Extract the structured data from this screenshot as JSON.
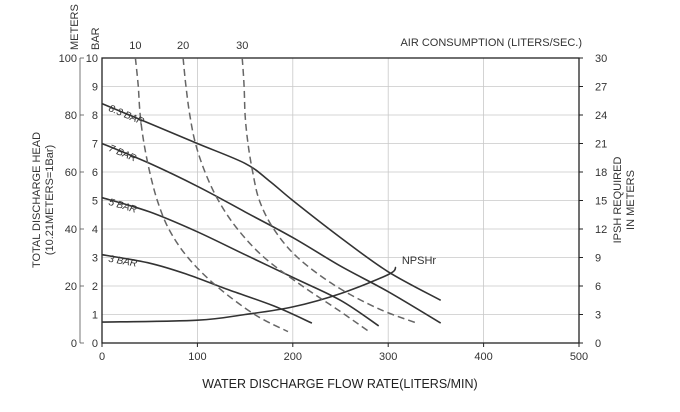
{
  "chart_data": {
    "type": "line",
    "title": "",
    "xlabel": "WATER DISCHARGE FLOW RATE(LITERS/MIN)",
    "x_ticks": [
      "0",
      "100",
      "200",
      "300",
      "400",
      "500"
    ],
    "xlim": [
      0,
      500
    ],
    "left_meters_label": "METERS",
    "left_bar_label": "BAR",
    "ylabel": "TOTAL DISCHARGE HEAD",
    "ylabel_sub": "(10.21METERS=1Bar)",
    "y_meters_ticks": [
      "0",
      "20",
      "40",
      "60",
      "80",
      "100"
    ],
    "y_bar_ticks": [
      "0",
      "1",
      "2",
      "3",
      "4",
      "5",
      "6",
      "7",
      "8",
      "9",
      "10"
    ],
    "ylim_meters": [
      0,
      100
    ],
    "right_ylabel_line1": "IPSH REQUIRED",
    "right_ylabel_line2": "IN METERS",
    "right_ticks": [
      "0",
      "3",
      "6",
      "9",
      "12",
      "15",
      "18",
      "21",
      "24",
      "27",
      "30"
    ],
    "ylim_right": [
      0,
      30
    ],
    "top_label": "AIR CONSUMPTION (LITERS/SEC.)",
    "top_ticks": [
      "10",
      "20",
      "30"
    ],
    "grid": true,
    "series": [
      {
        "name": "8.3 BAR",
        "style": "solid",
        "points": [
          [
            0,
            84
          ],
          [
            50,
            77
          ],
          [
            100,
            70
          ],
          [
            150,
            63
          ],
          [
            175,
            57
          ],
          [
            200,
            50
          ],
          [
            250,
            37
          ],
          [
            300,
            25
          ],
          [
            355,
            15
          ]
        ]
      },
      {
        "name": "7 BAR",
        "style": "solid",
        "points": [
          [
            0,
            70
          ],
          [
            50,
            63
          ],
          [
            100,
            55
          ],
          [
            150,
            46
          ],
          [
            200,
            37
          ],
          [
            250,
            27
          ],
          [
            300,
            18
          ],
          [
            355,
            7
          ]
        ]
      },
      {
        "name": "5 BAR",
        "style": "solid",
        "points": [
          [
            0,
            51
          ],
          [
            50,
            46
          ],
          [
            100,
            39
          ],
          [
            150,
            31
          ],
          [
            200,
            23
          ],
          [
            250,
            15
          ],
          [
            290,
            6
          ]
        ]
      },
      {
        "name": "3 BAR",
        "style": "solid",
        "points": [
          [
            0,
            31
          ],
          [
            50,
            28
          ],
          [
            90,
            24
          ],
          [
            130,
            19
          ],
          [
            180,
            13
          ],
          [
            220,
            7
          ]
        ]
      },
      {
        "name": "NPSHr",
        "style": "solid",
        "axis": "right",
        "points": [
          [
            0,
            2.2
          ],
          [
            100,
            2.4
          ],
          [
            150,
            3.0
          ],
          [
            200,
            3.8
          ],
          [
            250,
            5.2
          ],
          [
            300,
            7.2
          ],
          [
            308,
            8.0
          ]
        ]
      },
      {
        "name": "10",
        "style": "dashed",
        "points": [
          [
            35,
            100
          ],
          [
            38,
            90
          ],
          [
            40,
            80
          ],
          [
            44,
            70
          ],
          [
            50,
            60
          ],
          [
            58,
            50
          ],
          [
            70,
            40
          ],
          [
            90,
            30
          ],
          [
            120,
            20
          ],
          [
            160,
            10
          ],
          [
            195,
            4
          ]
        ]
      },
      {
        "name": "20",
        "style": "dashed",
        "points": [
          [
            85,
            100
          ],
          [
            88,
            90
          ],
          [
            92,
            80
          ],
          [
            98,
            70
          ],
          [
            108,
            60
          ],
          [
            122,
            50
          ],
          [
            142,
            40
          ],
          [
            170,
            30
          ],
          [
            210,
            20
          ],
          [
            250,
            11
          ],
          [
            280,
            4
          ]
        ]
      },
      {
        "name": "30",
        "style": "dashed",
        "points": [
          [
            147,
            100
          ],
          [
            149,
            90
          ],
          [
            150,
            80
          ],
          [
            153,
            70
          ],
          [
            158,
            60
          ],
          [
            165,
            50
          ],
          [
            180,
            40
          ],
          [
            205,
            30
          ],
          [
            245,
            20
          ],
          [
            290,
            12
          ],
          [
            330,
            7
          ]
        ]
      }
    ]
  }
}
